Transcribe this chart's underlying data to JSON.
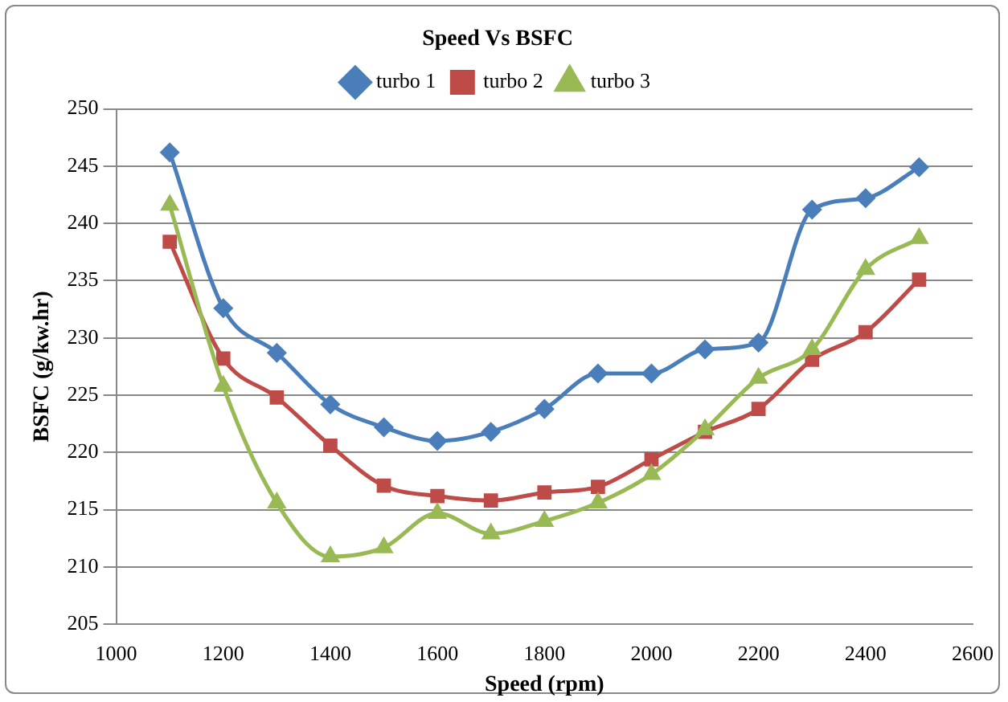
{
  "chart_data": {
    "type": "line",
    "title": "Speed Vs BSFC",
    "xlabel": "Speed (rpm)",
    "ylabel": "BSFC (g/kw.hr)",
    "x": [
      1100,
      1200,
      1300,
      1400,
      1500,
      1600,
      1700,
      1800,
      1900,
      2000,
      2100,
      2200,
      2300,
      2400,
      2500
    ],
    "series": [
      {
        "name": "turbo 1",
        "color": "#4a7ebb",
        "marker": "diamond",
        "values": [
          246.2,
          232.6,
          228.7,
          224.2,
          222.2,
          221,
          221.8,
          223.8,
          226.9,
          226.9,
          229,
          229.6,
          241.2,
          242.2,
          244.9
        ]
      },
      {
        "name": "turbo 2",
        "color": "#be4b48",
        "marker": "square",
        "values": [
          238.4,
          228.2,
          224.8,
          220.6,
          217.1,
          216.2,
          215.8,
          216.5,
          217,
          219.4,
          221.8,
          223.8,
          228.1,
          230.5,
          235.1
        ]
      },
      {
        "name": "turbo 3",
        "color": "#98b954",
        "marker": "triangle",
        "values": [
          241.6,
          225.8,
          215.6,
          210.9,
          211.7,
          214.7,
          212.9,
          214,
          215.6,
          218.1,
          222,
          226.5,
          229,
          236,
          238.7
        ]
      }
    ],
    "xlim": [
      1000,
      2600
    ],
    "xticks": [
      1000,
      1200,
      1400,
      1600,
      1800,
      2000,
      2200,
      2400,
      2600
    ],
    "ylim": [
      205,
      250
    ],
    "yticks": [
      205,
      210,
      215,
      220,
      225,
      230,
      235,
      240,
      245,
      250
    ],
    "grid": "y",
    "legend": "top"
  }
}
